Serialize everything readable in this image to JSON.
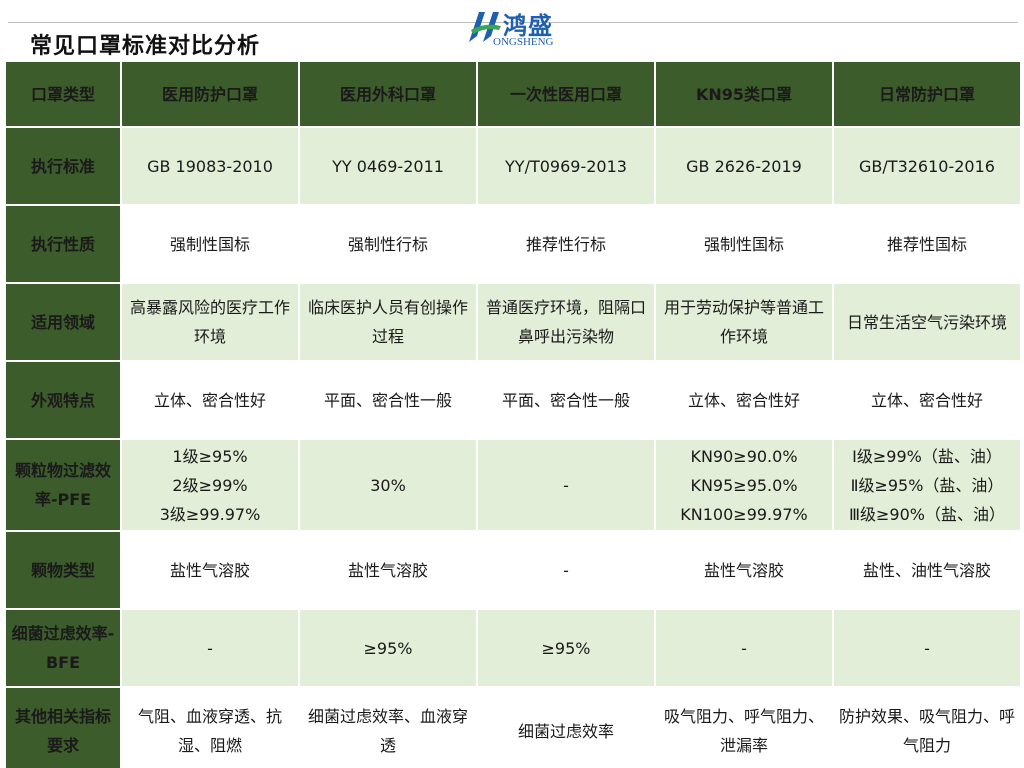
{
  "title": "常见口罩标准对比分析",
  "logo": {
    "name_cn": "鸿盛",
    "name_en": "ONGSHENG"
  },
  "colors": {
    "header_green": "#3d5c2b",
    "band_light_green": "#e2eed8",
    "logo_blue": "#1f5fb0"
  },
  "table": {
    "corner": "口罩类型",
    "columns": [
      "医用防护口罩",
      "医用外科口罩",
      "一次性医用口罩",
      "KN95类口罩",
      "日常防护口罩"
    ],
    "rows": [
      {
        "label": "执行标准",
        "cells": [
          "GB 19083-2010",
          "YY 0469-2011",
          "YY/T0969-2013",
          "GB 2626-2019",
          "GB/T32610-2016"
        ]
      },
      {
        "label": "执行性质",
        "cells": [
          "强制性国标",
          "强制性行标",
          "推荐性行标",
          "强制性国标",
          "推荐性国标"
        ]
      },
      {
        "label": "适用领域",
        "cells": [
          "高暴露风险的医疗工作环境",
          "临床医护人员有创操作过程",
          "普通医疗环境，阻隔口鼻呼出污染物",
          "用于劳动保护等普通工作环境",
          "日常生活空气污染环境"
        ]
      },
      {
        "label": "外观特点",
        "cells": [
          "立体、密合性好",
          "平面、密合性一般",
          "平面、密合性一般",
          "立体、密合性好",
          "立体、密合性好"
        ]
      },
      {
        "label": "颗粒物过滤效率-PFE",
        "cells": [
          [
            "1级≥95%",
            "2级≥99%",
            "3级≥99.97%"
          ],
          "30%",
          "-",
          [
            "KN90≥90.0%",
            "KN95≥95.0%",
            "KN100≥99.97%"
          ],
          [
            "Ⅰ级≥99%（盐、油）",
            "Ⅱ级≥95%（盐、油）",
            "Ⅲ级≥90%（盐、油）"
          ]
        ]
      },
      {
        "label": "颗物类型",
        "cells": [
          "盐性气溶胶",
          "盐性气溶胶",
          "-",
          "盐性气溶胶",
          "盐性、油性气溶胶"
        ]
      },
      {
        "label": "细菌过虑效率-BFE",
        "cells": [
          "-",
          "≥95%",
          "≥95%",
          "-",
          "-"
        ]
      },
      {
        "label": "其他相关指标要求",
        "cells": [
          "气阻、血液穿透、抗湿、阻燃",
          "细菌过虑效率、血液穿透",
          "细菌过虑效率",
          "吸气阻力、呼气阻力、泄漏率",
          "防护效果、吸气阻力、呼气阻力"
        ]
      }
    ]
  }
}
